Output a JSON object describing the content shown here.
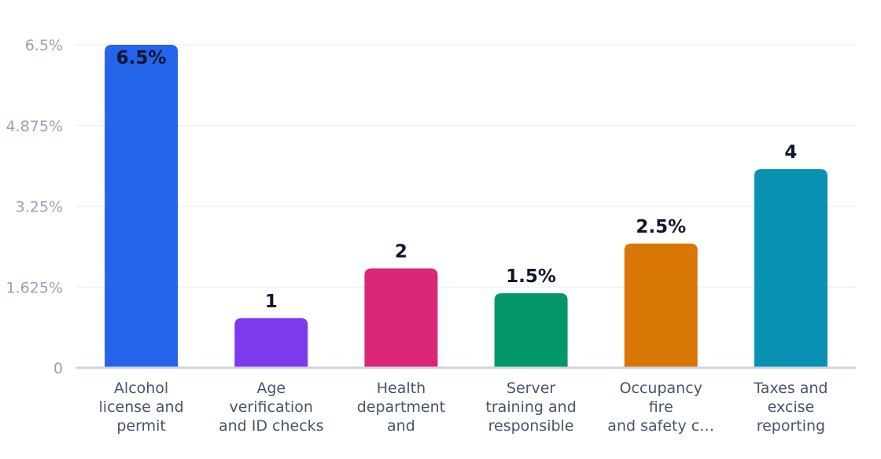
{
  "chart_data": {
    "type": "bar",
    "categories": [
      [
        "Alcohol",
        "license and",
        "permit"
      ],
      [
        "Age",
        "verification",
        "and ID checks"
      ],
      [
        "Health",
        "department",
        "and"
      ],
      [
        "Server",
        "training and",
        "responsible"
      ],
      [
        "Occupancy",
        "fire",
        "and safety c…"
      ],
      [
        "Taxes and",
        "excise",
        "reporting"
      ]
    ],
    "values": [
      6.5,
      1,
      2,
      1.5,
      2.5,
      4
    ],
    "value_labels": [
      "6.5%",
      "1",
      "2",
      "1.5%",
      "2.5%",
      "4"
    ],
    "colors": [
      "#2563eb",
      "#7c3aed",
      "#db2777",
      "#059669",
      "#d97706",
      "#0891b2"
    ],
    "yticks": [
      0,
      1.625,
      3.25,
      4.875,
      6.5
    ],
    "ytick_labels": [
      "0",
      "1.625%",
      "3.25%",
      "4.875%",
      "6.5%"
    ],
    "ylim": [
      0,
      6.5
    ],
    "grid": true
  }
}
